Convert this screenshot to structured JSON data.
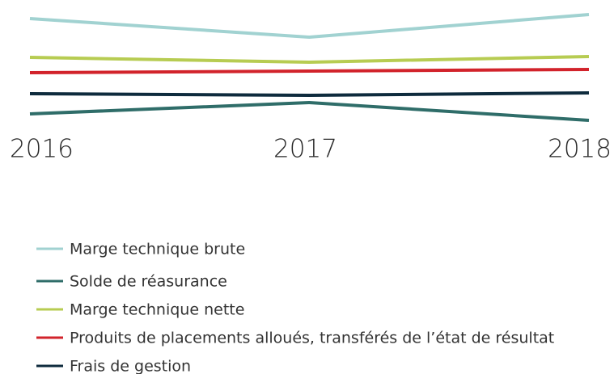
{
  "chart_data": {
    "type": "line",
    "categories": [
      "2016",
      "2017",
      "2018"
    ],
    "ylim": [
      0,
      160
    ],
    "series": [
      {
        "name": "Marge technique brute",
        "color": "#a1d2d1",
        "values": [
          137,
          114,
          142
        ]
      },
      {
        "name": "Solde de réasurance",
        "color": "#2f6d69",
        "values": [
          19,
          33,
          11
        ]
      },
      {
        "name": "Marge technique nette",
        "color": "#b7cc52",
        "values": [
          89,
          83,
          90
        ]
      },
      {
        "name": "Produits de placements alloués, transférés de l’état de résultat",
        "color": "#d2232b",
        "values": [
          70,
          72,
          74
        ]
      },
      {
        "name": "Frais de gestion",
        "color": "#0e2b3d",
        "values": [
          44,
          42,
          45
        ]
      }
    ]
  }
}
